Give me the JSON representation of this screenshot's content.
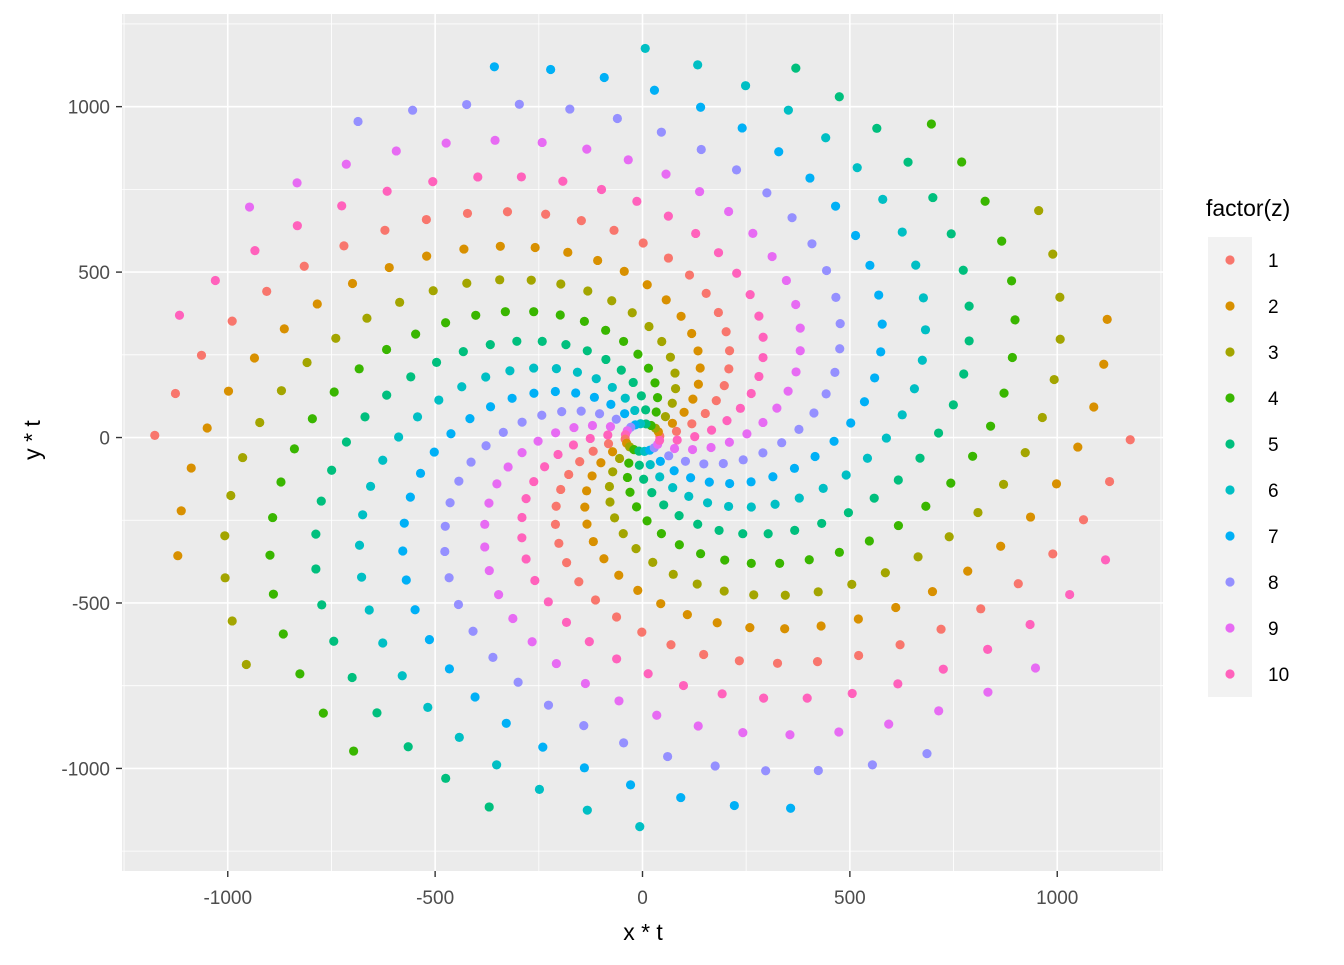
{
  "chart_data": {
    "type": "scatter",
    "xlabel": "x * t",
    "ylabel": "y * t",
    "xlim": [
      -1255,
      1255
    ],
    "ylim": [
      -1310,
      1280
    ],
    "x_ticks": [
      -1000,
      -500,
      0,
      500,
      1000
    ],
    "y_ticks": [
      -1000,
      -500,
      0,
      500,
      1000
    ],
    "x_tick_labels": [
      "-1000",
      "-500",
      "0",
      "500",
      "1000"
    ],
    "y_tick_labels": [
      "-1000",
      "-500",
      "0",
      "500",
      "1000"
    ],
    "grid": true,
    "panel_background": "#EBEBEB",
    "grid_color": "#FFFFFF",
    "legend": {
      "title": "factor(z)",
      "position": "right",
      "entries": [
        "1",
        "2",
        "3",
        "4",
        "5",
        "6",
        "7",
        "8",
        "9",
        "10"
      ],
      "colors": [
        "#F8766D",
        "#D89000",
        "#A3A500",
        "#39B600",
        "#00BF7D",
        "#00BFC4",
        "#00B0F6",
        "#9590FF",
        "#E76BF3",
        "#FF62BC"
      ]
    },
    "spiral": {
      "arms": 20,
      "points_per_arm": 28,
      "radius_step": 42,
      "turn_per_point": 0.112,
      "start_angle": 0.0,
      "arm_factor_order": [
        1,
        2,
        3,
        4,
        5,
        6,
        7,
        8,
        9,
        10,
        1,
        2,
        3,
        4,
        5,
        6,
        7,
        8,
        9,
        10
      ]
    }
  }
}
